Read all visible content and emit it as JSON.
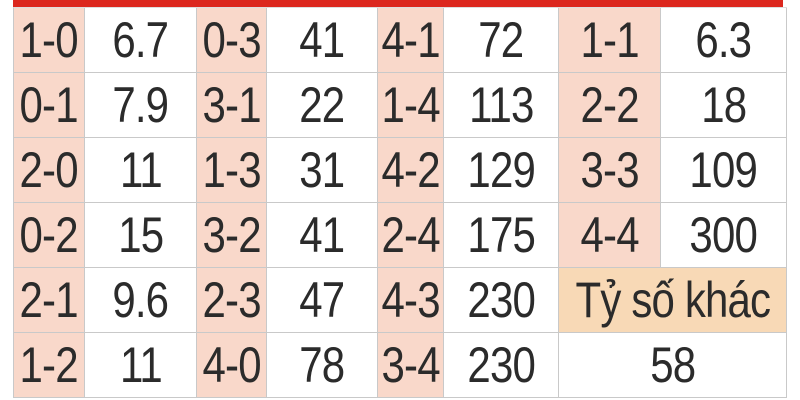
{
  "colors": {
    "page_bg": "#ffffff",
    "header_bar": "#dc271e",
    "score_cell_bg": "#f9d8ca",
    "other_cell_bg": "#f8d9b6",
    "odds_cell_bg": "#ffffff",
    "border": "#c9c9c9",
    "text": "#2b2b2b"
  },
  "table": {
    "rows": [
      {
        "pairs": [
          {
            "score": "1-0",
            "odds": "6.7"
          },
          {
            "score": "0-3",
            "odds": "41"
          },
          {
            "score": "4-1",
            "odds": "72"
          },
          {
            "score": "1-1",
            "odds": "6.3"
          }
        ]
      },
      {
        "pairs": [
          {
            "score": "0-1",
            "odds": "7.9"
          },
          {
            "score": "3-1",
            "odds": "22"
          },
          {
            "score": "1-4",
            "odds": "113"
          },
          {
            "score": "2-2",
            "odds": "18"
          }
        ]
      },
      {
        "pairs": [
          {
            "score": "2-0",
            "odds": "11"
          },
          {
            "score": "1-3",
            "odds": "31"
          },
          {
            "score": "4-2",
            "odds": "129"
          },
          {
            "score": "3-3",
            "odds": "109"
          }
        ]
      },
      {
        "pairs": [
          {
            "score": "0-2",
            "odds": "15"
          },
          {
            "score": "3-2",
            "odds": "41"
          },
          {
            "score": "2-4",
            "odds": "175"
          },
          {
            "score": "4-4",
            "odds": "300"
          }
        ]
      },
      {
        "pairs": [
          {
            "score": "2-1",
            "odds": "9.6"
          },
          {
            "score": "2-3",
            "odds": "47"
          },
          {
            "score": "4-3",
            "odds": "230"
          }
        ],
        "span": {
          "label": "Tỷ số khác",
          "type": "other-label"
        }
      },
      {
        "pairs": [
          {
            "score": "1-2",
            "odds": "11"
          },
          {
            "score": "4-0",
            "odds": "78"
          },
          {
            "score": "3-4",
            "odds": "230"
          }
        ],
        "span": {
          "label": "58",
          "type": "other-odds"
        }
      }
    ]
  },
  "chart_data": {
    "type": "table",
    "columns": [
      "score",
      "odds",
      "score",
      "odds",
      "score",
      "odds",
      "score",
      "odds"
    ],
    "rows": [
      [
        "1-0",
        "6.7",
        "0-3",
        "41",
        "4-1",
        "72",
        "1-1",
        "6.3"
      ],
      [
        "0-1",
        "7.9",
        "3-1",
        "22",
        "1-4",
        "113",
        "2-2",
        "18"
      ],
      [
        "2-0",
        "11",
        "1-3",
        "31",
        "4-2",
        "129",
        "3-3",
        "109"
      ],
      [
        "0-2",
        "15",
        "3-2",
        "41",
        "2-4",
        "175",
        "4-4",
        "300"
      ],
      [
        "2-1",
        "9.6",
        "2-3",
        "47",
        "4-3",
        "230",
        "Tỷ số khác",
        ""
      ],
      [
        "1-2",
        "11",
        "4-0",
        "78",
        "3-4",
        "230",
        "58",
        ""
      ]
    ],
    "other_score_label": "Tỷ số khác",
    "other_score_odds": "58"
  }
}
